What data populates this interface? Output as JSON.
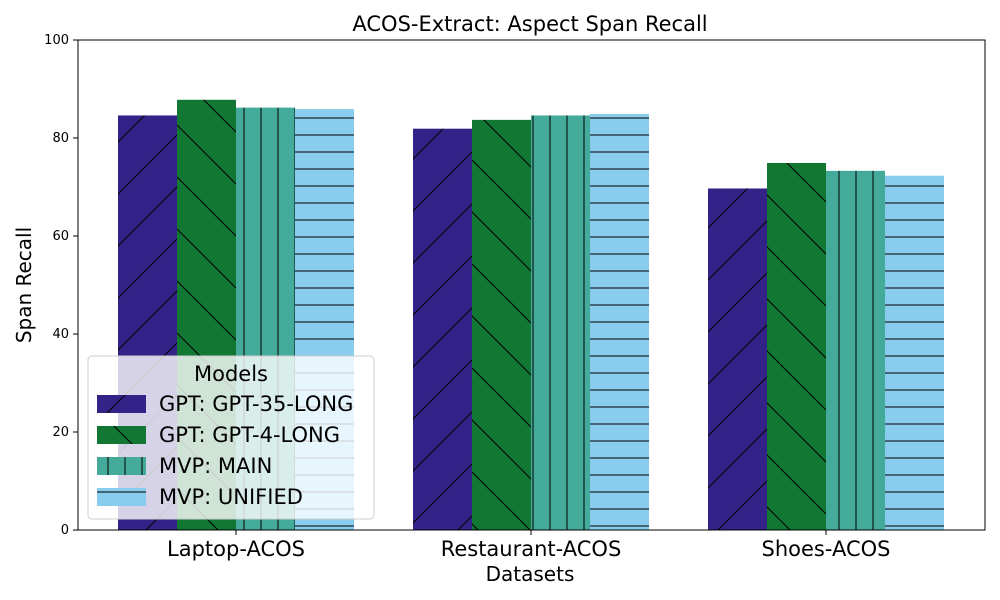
{
  "chart_data": {
    "type": "bar",
    "title": "ACOS-Extract: Aspect Span Recall",
    "xlabel": "Datasets",
    "ylabel": "Span Recall",
    "ylim": [
      0,
      100
    ],
    "yticks": [
      0,
      20,
      40,
      60,
      80,
      100
    ],
    "grid": false,
    "categories": [
      "Laptop-ACOS",
      "Restaurant-ACOS",
      "Shoes-ACOS"
    ],
    "legend": {
      "title": "Models",
      "placement": "lower-left"
    },
    "series": [
      {
        "name": "GPT: GPT-35-LONG",
        "color": "#332288",
        "hatch": "diagonal-up",
        "values": [
          84.6,
          81.9,
          69.7
        ]
      },
      {
        "name": "GPT: GPT-4-LONG",
        "color": "#117733",
        "hatch": "diagonal-down",
        "values": [
          87.8,
          83.7,
          74.9
        ]
      },
      {
        "name": "MVP: MAIN",
        "color": "#44AA99",
        "hatch": "vertical",
        "values": [
          86.2,
          84.6,
          73.3
        ]
      },
      {
        "name": "MVP: UNIFIED",
        "color": "#88CCEE",
        "hatch": "horizontal",
        "values": [
          85.9,
          84.9,
          72.3
        ]
      }
    ]
  }
}
